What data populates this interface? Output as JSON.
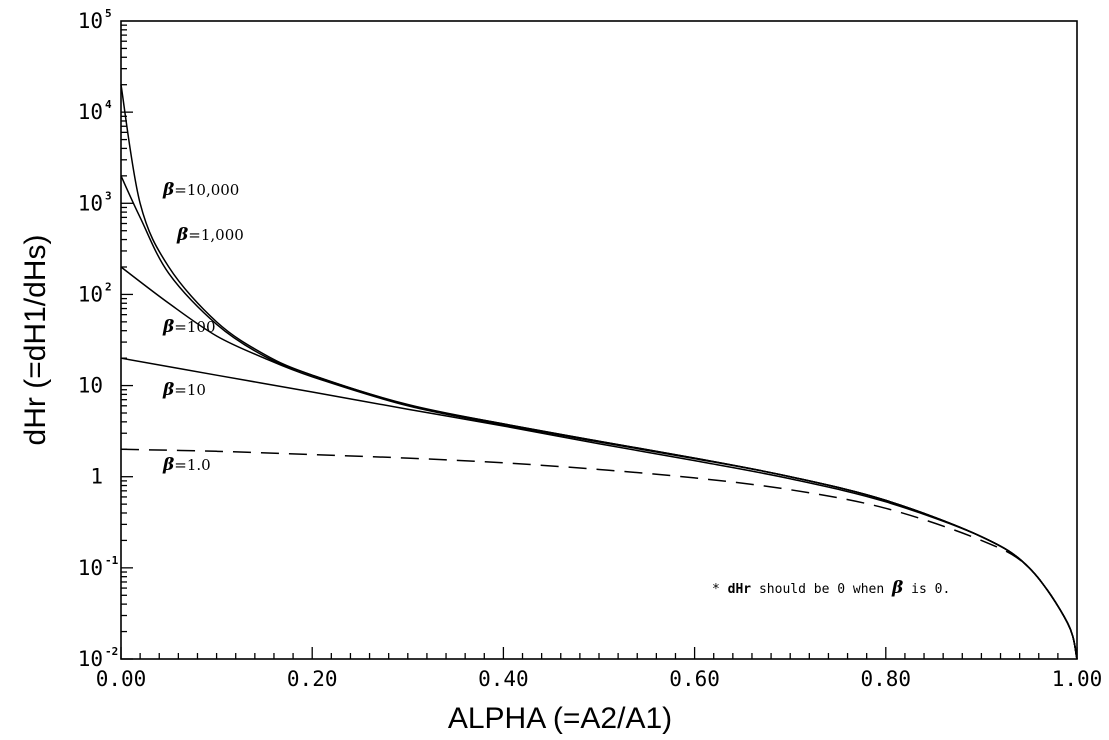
{
  "chart_data": {
    "type": "line",
    "title": "",
    "xlabel": "ALPHA  (=A2/A1)",
    "ylabel": "dHr  (=dH1/dHs)",
    "xlim": [
      0,
      1
    ],
    "ylim": [
      0.01,
      100000
    ],
    "yscale": "log",
    "grid": false,
    "x_ticks": [
      "0.00",
      "0.20",
      "0.40",
      "0.60",
      "0.80",
      "1.00"
    ],
    "y_ticks": [
      {
        "value": 100000,
        "base": "10",
        "exp": "5"
      },
      {
        "value": 10000,
        "base": "10",
        "exp": "4"
      },
      {
        "value": 1000,
        "base": "10",
        "exp": "3"
      },
      {
        "value": 100,
        "base": "10",
        "exp": "2"
      },
      {
        "value": 10,
        "base": "10",
        "exp": ""
      },
      {
        "value": 1,
        "base": "1",
        "exp": ""
      },
      {
        "value": 0.1,
        "base": "10",
        "exp": "-1"
      },
      {
        "value": 0.01,
        "base": "10",
        "exp": "-2"
      }
    ],
    "series": [
      {
        "name": "=10,000",
        "beta": 10000,
        "dashed": false,
        "x": [
          0,
          0.02,
          0.05,
          0.1,
          0.15,
          0.2,
          0.3,
          0.4,
          0.5,
          0.6,
          0.7,
          0.8,
          0.9,
          0.95,
          0.99,
          1.0
        ],
        "y": [
          20000,
          1000,
          200,
          50,
          22,
          13,
          6.2,
          3.8,
          2.45,
          1.6,
          1.0,
          0.55,
          0.22,
          0.1,
          0.025,
          0.01
        ]
      },
      {
        "name": "=1,000",
        "beta": 1000,
        "dashed": false,
        "x": [
          0,
          0.02,
          0.05,
          0.1,
          0.15,
          0.2,
          0.3,
          0.4,
          0.5,
          0.6,
          0.7,
          0.8,
          0.9,
          0.95,
          0.99,
          1.0
        ],
        "y": [
          2000,
          700,
          170,
          47,
          21,
          13,
          6.1,
          3.8,
          2.45,
          1.6,
          1.0,
          0.55,
          0.22,
          0.1,
          0.025,
          0.01
        ]
      },
      {
        "name": "=100",
        "beta": 100,
        "dashed": false,
        "x": [
          0,
          0.05,
          0.1,
          0.15,
          0.2,
          0.3,
          0.4,
          0.5,
          0.6,
          0.7,
          0.8,
          0.9,
          0.95,
          0.99,
          1.0
        ],
        "y": [
          200,
          80,
          35,
          20,
          12.5,
          6.0,
          3.7,
          2.4,
          1.58,
          1.0,
          0.55,
          0.22,
          0.1,
          0.025,
          0.01
        ]
      },
      {
        "name": "=10",
        "beta": 10,
        "dashed": false,
        "x": [
          0,
          0.1,
          0.2,
          0.3,
          0.4,
          0.5,
          0.6,
          0.7,
          0.8,
          0.9,
          0.95,
          0.99,
          1.0
        ],
        "y": [
          20,
          13,
          8.5,
          5.5,
          3.6,
          2.3,
          1.5,
          0.95,
          0.53,
          0.22,
          0.1,
          0.025,
          0.01
        ]
      },
      {
        "name": "=1.0",
        "beta": 1,
        "dashed": true,
        "x": [
          0,
          0.1,
          0.2,
          0.3,
          0.4,
          0.5,
          0.6,
          0.7,
          0.8,
          0.9,
          0.95,
          0.99,
          1.0
        ],
        "y": [
          2.0,
          1.9,
          1.75,
          1.6,
          1.42,
          1.2,
          0.97,
          0.72,
          0.45,
          0.2,
          0.1,
          0.025,
          0.01
        ]
      }
    ],
    "beta_symbol": "β",
    "annotation": {
      "star": "*",
      "part1": "dHr",
      "part2": " should be 0 when ",
      "symbol": "β",
      "part3": "is 0."
    }
  }
}
